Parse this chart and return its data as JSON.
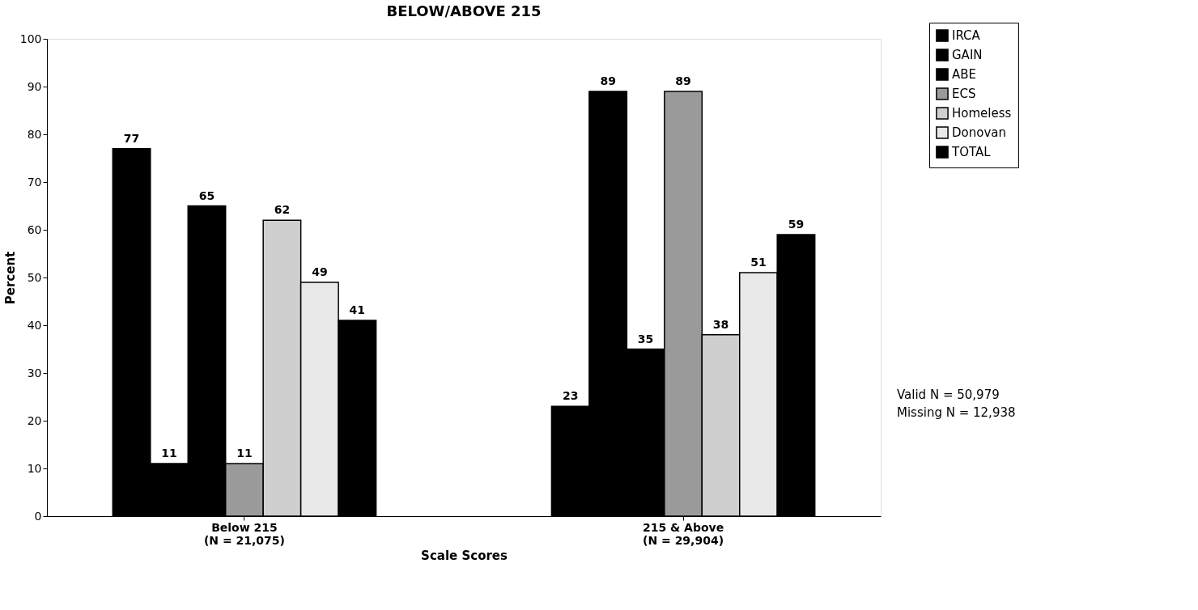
{
  "chart_data": {
    "type": "bar",
    "title": "BELOW/ABOVE 215",
    "categories": [
      "Below 215\n(N = 21,075)",
      "215 & Above\n(N = 29,904)"
    ],
    "series": [
      {
        "name": "IRCA",
        "color": "#000000",
        "values": [
          77,
          23
        ]
      },
      {
        "name": "GAIN",
        "color": "#000000",
        "values": [
          11,
          89
        ]
      },
      {
        "name": "ABE",
        "color": "#000000",
        "values": [
          65,
          35
        ]
      },
      {
        "name": "ECS",
        "color": "#9a9a9a",
        "values": [
          11,
          89
        ]
      },
      {
        "name": "Homeless",
        "color": "#cfcfcf",
        "values": [
          62,
          38
        ]
      },
      {
        "name": "Donovan",
        "color": "#e8e8e8",
        "values": [
          49,
          51
        ]
      },
      {
        "name": "TOTAL",
        "color": "#000000",
        "values": [
          41,
          59
        ]
      }
    ],
    "xlabel": "Scale Scores",
    "ylabel": "Percent",
    "ylim": [
      0,
      100
    ],
    "yticks": [
      0,
      10,
      20,
      30,
      40,
      50,
      60,
      70,
      80,
      90,
      100
    ],
    "grid": false,
    "legend": "top right",
    "data_labels": true,
    "annotations": [
      "Valid N = 50,979",
      "Missing N = 12,938"
    ]
  }
}
